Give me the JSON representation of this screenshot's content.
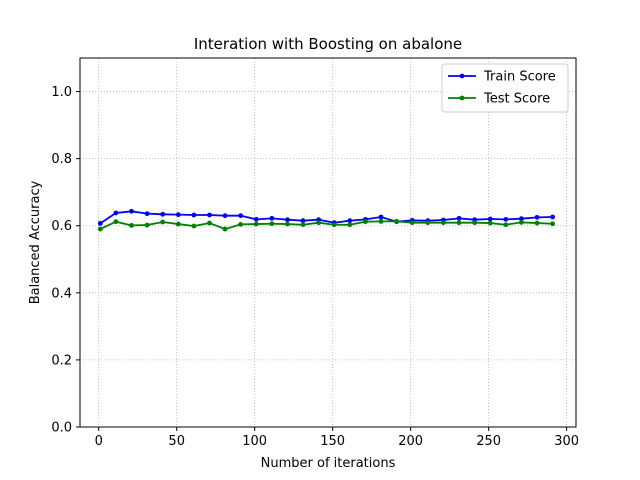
{
  "chart_data": {
    "type": "line",
    "title": "Interation with Boosting on abalone",
    "xlabel": "Number of iterations",
    "ylabel": "Balanced Accuracy",
    "xlim": [
      -12,
      306
    ],
    "ylim": [
      0.0,
      1.1
    ],
    "xticks": [
      0,
      50,
      100,
      150,
      200,
      250,
      300
    ],
    "yticks": [
      0.0,
      0.2,
      0.4,
      0.6,
      0.8,
      1.0
    ],
    "xtick_labels": [
      "0",
      "50",
      "100",
      "150",
      "200",
      "250",
      "300"
    ],
    "ytick_labels": [
      "0.0",
      "0.2",
      "0.4",
      "0.6",
      "0.8",
      "1.0"
    ],
    "grid": true,
    "legend_position": "top-right",
    "x": [
      1,
      11,
      21,
      31,
      41,
      51,
      61,
      71,
      81,
      91,
      101,
      111,
      121,
      131,
      141,
      151,
      161,
      171,
      181,
      191,
      201,
      211,
      221,
      231,
      241,
      251,
      261,
      271,
      281,
      291
    ],
    "series": [
      {
        "name": "Train Score",
        "color": "#0000ff",
        "values": [
          0.607,
          0.638,
          0.643,
          0.636,
          0.634,
          0.633,
          0.632,
          0.632,
          0.63,
          0.63,
          0.619,
          0.622,
          0.618,
          0.615,
          0.618,
          0.609,
          0.615,
          0.619,
          0.626,
          0.612,
          0.616,
          0.615,
          0.617,
          0.622,
          0.618,
          0.62,
          0.619,
          0.621,
          0.625,
          0.626
        ]
      },
      {
        "name": "Test Score",
        "color": "#008000",
        "values": [
          0.59,
          0.612,
          0.601,
          0.602,
          0.611,
          0.605,
          0.599,
          0.608,
          0.59,
          0.604,
          0.605,
          0.606,
          0.605,
          0.603,
          0.609,
          0.603,
          0.603,
          0.612,
          0.613,
          0.613,
          0.609,
          0.609,
          0.609,
          0.609,
          0.609,
          0.608,
          0.603,
          0.61,
          0.608,
          0.606
        ]
      }
    ]
  }
}
